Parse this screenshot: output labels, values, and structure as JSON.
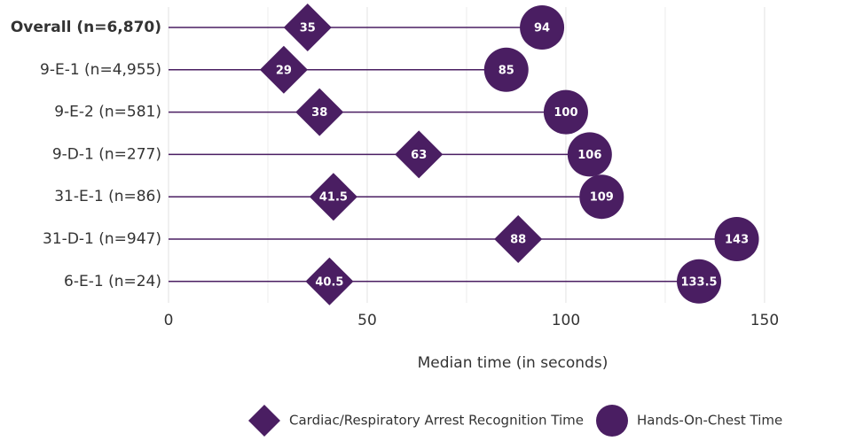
{
  "chart_data": {
    "type": "dumbbell",
    "categories": [
      "Overall (n=6,870)",
      "9-E-1 (n=4,955)",
      "9-E-2 (n=581)",
      "9-D-1 (n=277)",
      "31-E-1 (n=86)",
      "31-D-1 (n=947)",
      "6-E-1 (n=24)"
    ],
    "highlight_index": 0,
    "series": [
      {
        "name": "Cardiac/Respiratory Arrest Recognition Time",
        "marker": "diamond",
        "color": "#4a1e62",
        "values": [
          35,
          29,
          38,
          63,
          41.5,
          88,
          40.5
        ]
      },
      {
        "name": "Hands-On-Chest Time",
        "marker": "circle",
        "color": "#4a1e62",
        "values": [
          94,
          85,
          100,
          106,
          109,
          143,
          133.5
        ]
      }
    ],
    "xlabel": "Median time (in seconds)",
    "xlim": [
      0,
      171
    ],
    "xticks": [
      0,
      50,
      100,
      150
    ],
    "xminor_ticks": [
      25,
      75,
      125
    ],
    "grid": true,
    "legend": "bottom"
  }
}
